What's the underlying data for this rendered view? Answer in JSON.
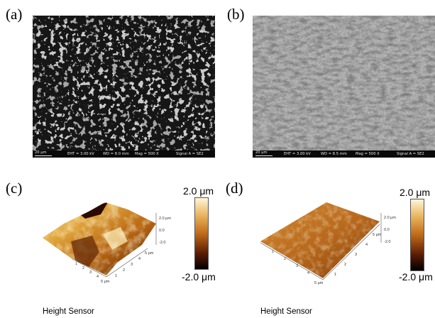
{
  "panels": {
    "a": {
      "label": "(a)",
      "sem": {
        "scale": "20 μm",
        "eht": "EHT = 3.00 kV",
        "wd": "WD = 8.0 mm",
        "mag": "Mag = 500 X",
        "signal": "Signal A = SE2"
      }
    },
    "b": {
      "label": "(b)",
      "sem": {
        "scale": "20 μm",
        "eht": "EHT = 3.00 kV",
        "wd": "WD = 8.5 mm",
        "mag": "Mag = 500 X",
        "signal": "Signal A = SE2"
      }
    },
    "c": {
      "label": "(c)",
      "max": "2.0 μm",
      "min": "-2.0 μm",
      "caption": "Height Sensor",
      "z_ticks": [
        "2.0 μm",
        "0.0",
        "-2.0"
      ],
      "axis_ticks": [
        "1",
        "2",
        "3",
        "4",
        "5 μm"
      ]
    },
    "d": {
      "label": "(d)",
      "max": "2.0 μm",
      "min": "-2.0 μm",
      "caption": "Height Sensor",
      "z_ticks": [
        "2.0 μm",
        "0.0",
        "-2.0"
      ],
      "axis_ticks": [
        "1",
        "2",
        "3",
        "4",
        "5 μm"
      ]
    }
  },
  "colors": {
    "afm_high": "#fff6d8",
    "afm_mid": "#d27a1e",
    "afm_low": "#000000"
  }
}
